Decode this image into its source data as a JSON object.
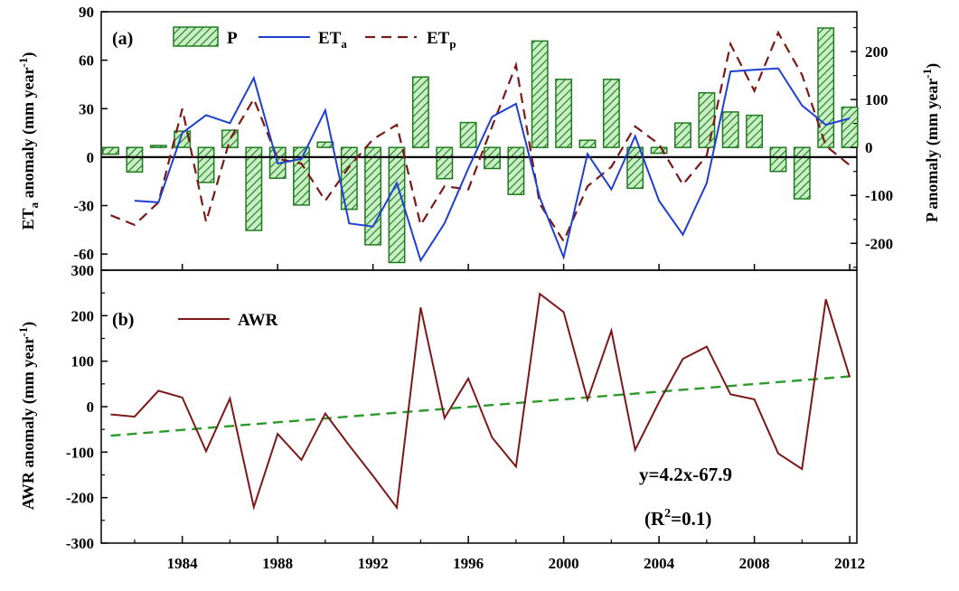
{
  "chart_data": [
    {
      "type": "bar+line",
      "panel_label": "(a)",
      "years": [
        1981,
        1982,
        1983,
        1984,
        1985,
        1986,
        1987,
        1988,
        1989,
        1990,
        1991,
        1992,
        1993,
        1994,
        1995,
        1996,
        1997,
        1998,
        1999,
        2000,
        2001,
        2002,
        2003,
        2004,
        2005,
        2006,
        2007,
        2008,
        2009,
        2010,
        2011,
        2012
      ],
      "series": [
        {
          "name": "P",
          "axis": "right",
          "kind": "bar",
          "values": [
            -14,
            -51,
            4,
            34,
            -73,
            36,
            -173,
            -64,
            -120,
            11,
            -129,
            -203,
            -240,
            147,
            -65,
            52,
            -44,
            -98,
            222,
            142,
            15,
            142,
            -85,
            -12,
            51,
            114,
            74,
            67,
            -50,
            -107,
            249,
            84
          ]
        },
        {
          "name": "ETa",
          "axis": "left",
          "kind": "line",
          "color": "#1f3fcf",
          "values": [
            null,
            -27,
            -28,
            15,
            26,
            21,
            49,
            -4,
            -1,
            29,
            -41,
            -43,
            -16,
            -64,
            -41,
            -7,
            25,
            33,
            -25,
            -62,
            2,
            -20,
            13,
            -27,
            -48,
            -16,
            53,
            54,
            55,
            32,
            20,
            24
          ]
        },
        {
          "name": "ETp",
          "axis": "left",
          "kind": "line",
          "color": "#7b1818",
          "values": [
            -36,
            -42,
            -28,
            30,
            -40,
            11,
            36,
            -1,
            -4,
            -27,
            -6,
            11,
            20,
            -42,
            -18,
            -20,
            19,
            57,
            -29,
            -52,
            -18,
            -6,
            19,
            8,
            -17,
            1,
            70,
            41,
            77,
            51,
            7,
            -5
          ]
        }
      ],
      "legend": [
        "P",
        "ETa",
        "ETp"
      ],
      "left_ylabel": "ETa anomaly (mm year-1)",
      "right_ylabel": "P anomaly (mm year-1)",
      "left_ylim": [
        -70,
        90
      ],
      "left_yticks": [
        "90",
        "60",
        "30",
        "0",
        "-30",
        "-60"
      ],
      "right_ylim": [
        -256,
        283
      ],
      "right_yticks": [
        "200",
        "100",
        "0",
        "-100",
        "-200"
      ],
      "zero_line": true
    },
    {
      "type": "line",
      "panel_label": "(b)",
      "years": [
        1981,
        1982,
        1983,
        1984,
        1985,
        1986,
        1987,
        1988,
        1989,
        1990,
        1991,
        1992,
        1993,
        1994,
        1995,
        1996,
        1997,
        1998,
        1999,
        2000,
        2001,
        2002,
        2003,
        2004,
        2005,
        2006,
        2007,
        2008,
        2009,
        2010,
        2011,
        2012
      ],
      "series": [
        {
          "name": "AWR",
          "color": "#7b1818",
          "values": [
            -17,
            -22,
            35,
            20,
            -98,
            18,
            -221,
            -60,
            -117,
            -15,
            -85,
            -152,
            -222,
            218,
            -25,
            62,
            -68,
            -132,
            248,
            208,
            15,
            167,
            -95,
            10,
            105,
            132,
            27,
            16,
            -103,
            -137,
            236,
            65
          ]
        },
        {
          "name": "trend",
          "color": "#2a9a2a",
          "kind": "dashed",
          "slope": 4.2,
          "intercept": -67.9
        }
      ],
      "legend": [
        "AWR"
      ],
      "ylabel": "AWR anomaly (mm year-1)",
      "ylim": [
        -300,
        300
      ],
      "yticks": [
        "300",
        "200",
        "100",
        "0",
        "-100",
        "-200",
        "-300"
      ],
      "equation": "y=4.2x-67.9",
      "r2_prefix": "(R",
      "r2_sup": "2",
      "r2_suffix": "=0.1)"
    }
  ],
  "x_axis": {
    "xlim": [
      1980.6,
      2012.3
    ],
    "ticks": [
      "1984",
      "1988",
      "1992",
      "1996",
      "2000",
      "2004",
      "2008",
      "2012"
    ]
  },
  "text": {
    "legend_P": "P",
    "legend_ET": "ET",
    "sub_a": "a",
    "sub_p": "p",
    "legend_AWR": "AWR",
    "etaLabel_main": "ET",
    "etaLabel_sub": "a",
    "etaLabel_rest": " anomaly (mm year",
    "etaLabel_sup": "-1",
    "etaLabel_end": ")",
    "pLabel_main": "P anomaly (mm year",
    "pLabel_sup": "-1",
    "pLabel_end": ")",
    "awrLabel_main": "AWR anomaly (mm year",
    "awrLabel_sup": "-1",
    "awrLabel_end": ")"
  }
}
